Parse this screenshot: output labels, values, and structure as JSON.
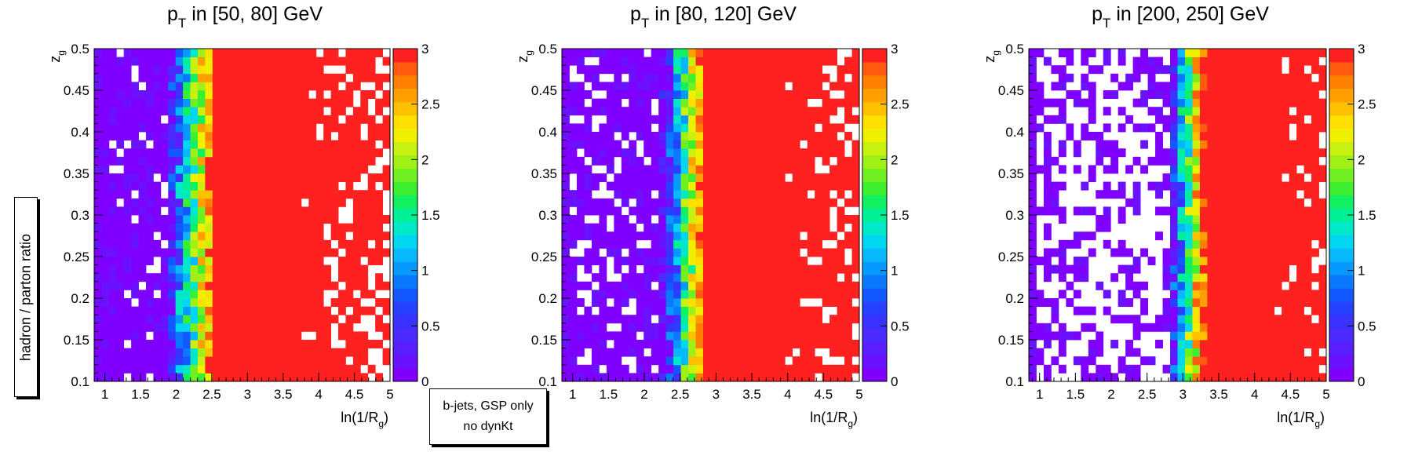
{
  "figure": {
    "ylabel_text": "hadron / parton ratio",
    "note_line1": "b-jets, GSP only",
    "note_line2": "no dynKt"
  },
  "chart_data": [
    {
      "type": "heatmap",
      "title": "p_T in [50, 80] GeV",
      "title_main": "p",
      "title_sub": "T",
      "title_rest": " in [50, 80] GeV",
      "xlabel_main": "ln(1/R",
      "xlabel_sub": "g",
      "xlabel_end": ")",
      "ylabel_main": "z",
      "ylabel_sub": "g",
      "xlim": [
        0.85,
        5.0
      ],
      "ylim": [
        0.1,
        0.5
      ],
      "zlim": [
        0,
        3
      ],
      "n_x_bins": 40,
      "n_y_bins": 40,
      "xticks": [
        "1",
        "1.5",
        "2",
        "2.5",
        "3",
        "3.5",
        "4",
        "4.5",
        "5"
      ],
      "yticks": [
        "0.1",
        "0.15",
        "0.2",
        "0.25",
        "0.3",
        "0.35",
        "0.4",
        "0.45",
        "0.5"
      ],
      "zticks": [
        "0",
        "0.5",
        "1",
        "1.5",
        "2",
        "2.5",
        "3"
      ],
      "transition_center": 2.2,
      "transition_width": 0.35,
      "empty_fraction_low": 0.1,
      "empty_fraction_high_start": 3.6,
      "empty_fraction_high": 0.3
    },
    {
      "type": "heatmap",
      "title": "p_T in [80, 120] GeV",
      "title_main": "p",
      "title_sub": "T",
      "title_rest": " in [80, 120] GeV",
      "xlabel_main": "ln(1/R",
      "xlabel_sub": "g",
      "xlabel_end": ")",
      "ylabel_main": "z",
      "ylabel_sub": "g",
      "xlim": [
        0.85,
        5.0
      ],
      "ylim": [
        0.1,
        0.5
      ],
      "zlim": [
        0,
        3
      ],
      "n_x_bins": 40,
      "n_y_bins": 40,
      "xticks": [
        "1",
        "1.5",
        "2",
        "2.5",
        "3",
        "3.5",
        "4",
        "4.5",
        "5"
      ],
      "yticks": [
        "0.1",
        "0.15",
        "0.2",
        "0.25",
        "0.3",
        "0.35",
        "0.4",
        "0.45",
        "0.5"
      ],
      "zticks": [
        "0",
        "0.5",
        "1",
        "1.5",
        "2",
        "2.5",
        "3"
      ],
      "transition_center": 2.55,
      "transition_width": 0.3,
      "empty_fraction_low": 0.22,
      "empty_fraction_high_start": 3.9,
      "empty_fraction_high": 0.28
    },
    {
      "type": "heatmap",
      "title": "p_T in [200, 250] GeV",
      "title_main": "p",
      "title_sub": "T",
      "title_rest": " in [200, 250] GeV",
      "xlabel_main": "ln(1/R",
      "xlabel_sub": "g",
      "xlabel_end": ")",
      "ylabel_main": "z",
      "ylabel_sub": "g",
      "xlim": [
        0.85,
        5.0
      ],
      "ylim": [
        0.1,
        0.5
      ],
      "zlim": [
        0,
        3
      ],
      "n_x_bins": 40,
      "n_y_bins": 40,
      "xticks": [
        "1",
        "1.5",
        "2",
        "2.5",
        "3",
        "3.5",
        "4",
        "4.5",
        "5"
      ],
      "yticks": [
        "0.1",
        "0.15",
        "0.2",
        "0.25",
        "0.3",
        "0.35",
        "0.4",
        "0.45",
        "0.5"
      ],
      "zticks": [
        "0",
        "0.5",
        "1",
        "1.5",
        "2",
        "2.5",
        "3"
      ],
      "transition_center": 3.05,
      "transition_width": 0.25,
      "empty_fraction_low": 0.55,
      "empty_fraction_high_start": 4.1,
      "empty_fraction_high": 0.2
    }
  ]
}
